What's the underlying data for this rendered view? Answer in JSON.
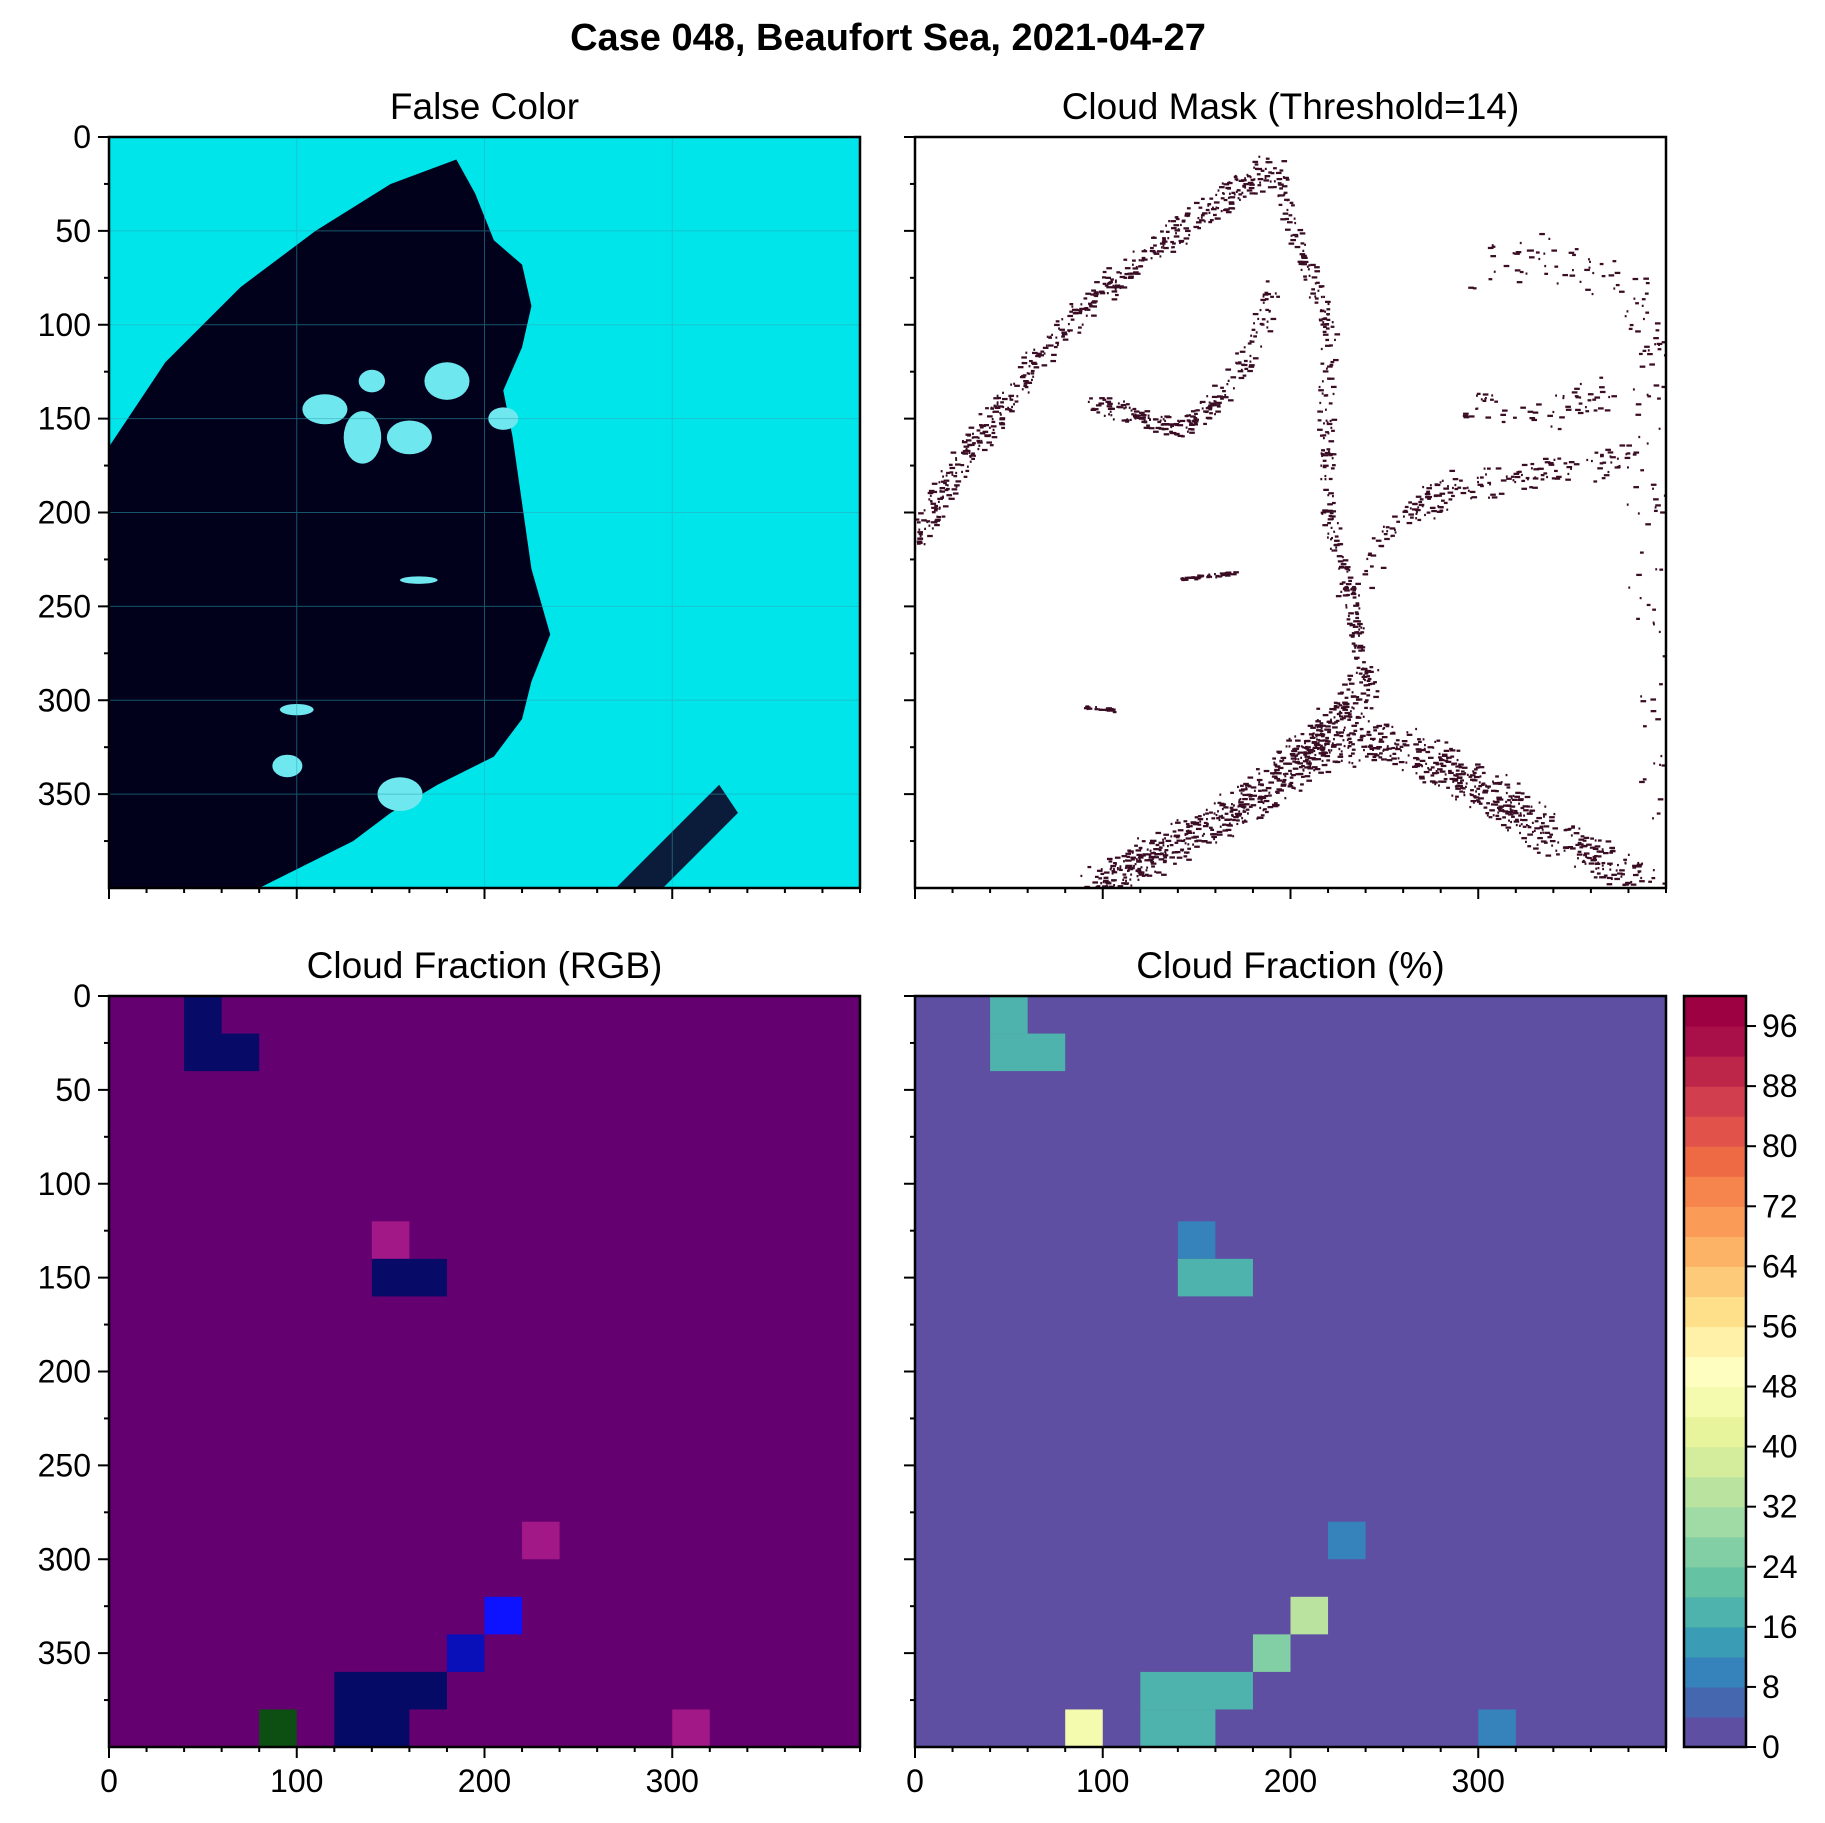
{
  "title": "Case 048, Beaufort Sea, 2021-04-27",
  "chart_data": [
    {
      "panel": "false-color",
      "type": "heatmap",
      "title": "False Color",
      "description_colors": {
        "ice": "#00e5ea",
        "water": "#02011c"
      },
      "xlim": [
        0,
        400
      ],
      "ylim": [
        400,
        0
      ],
      "xticks": [
        0,
        100,
        200,
        300
      ],
      "yticks": [
        0,
        50,
        100,
        150,
        200,
        250,
        300,
        350
      ],
      "grid": true
    },
    {
      "panel": "cloud-mask",
      "type": "heatmap",
      "title": "Cloud Mask (Threshold=14)",
      "colors": {
        "masked": "#3a0d24",
        "clear": "#ffffff"
      },
      "xlim": [
        0,
        400
      ],
      "ylim": [
        400,
        0
      ],
      "xticks": [
        0,
        100,
        200,
        300
      ],
      "yticks": [
        0,
        50,
        100,
        150,
        200,
        250,
        300,
        350
      ]
    },
    {
      "panel": "cloud-fraction-rgb",
      "type": "heatmap",
      "title": "Cloud Fraction (RGB)",
      "block_size": 20,
      "background": "#650070",
      "cells": [
        {
          "x": 40,
          "y": 0,
          "w": 20,
          "h": 20,
          "color": "#070a66"
        },
        {
          "x": 40,
          "y": 20,
          "w": 40,
          "h": 20,
          "color": "#070a66"
        },
        {
          "x": 140,
          "y": 120,
          "w": 20,
          "h": 20,
          "color": "#a31887"
        },
        {
          "x": 140,
          "y": 140,
          "w": 40,
          "h": 20,
          "color": "#070a66"
        },
        {
          "x": 220,
          "y": 280,
          "w": 20,
          "h": 20,
          "color": "#a31887"
        },
        {
          "x": 200,
          "y": 320,
          "w": 20,
          "h": 20,
          "color": "#0d12ff"
        },
        {
          "x": 180,
          "y": 340,
          "w": 20,
          "h": 20,
          "color": "#0a10b9"
        },
        {
          "x": 120,
          "y": 360,
          "w": 60,
          "h": 20,
          "color": "#050a66"
        },
        {
          "x": 120,
          "y": 380,
          "w": 40,
          "h": 20,
          "color": "#050a66"
        },
        {
          "x": 80,
          "y": 380,
          "w": 20,
          "h": 20,
          "color": "#0d4f12"
        },
        {
          "x": 300,
          "y": 380,
          "w": 20,
          "h": 20,
          "color": "#a31887"
        }
      ],
      "xlim": [
        0,
        400
      ],
      "ylim": [
        400,
        0
      ],
      "xticks": [
        0,
        100,
        200,
        300
      ],
      "yticks": [
        0,
        50,
        100,
        150,
        200,
        250,
        300,
        350
      ]
    },
    {
      "panel": "cloud-fraction-pct",
      "type": "heatmap",
      "title": "Cloud Fraction (%)",
      "block_size": 20,
      "background_value": 0,
      "cells": [
        {
          "x": 40,
          "y": 0,
          "w": 20,
          "h": 20,
          "value": 16
        },
        {
          "x": 40,
          "y": 20,
          "w": 40,
          "h": 20,
          "value": 16
        },
        {
          "x": 140,
          "y": 120,
          "w": 20,
          "h": 20,
          "value": 10
        },
        {
          "x": 140,
          "y": 140,
          "w": 40,
          "h": 20,
          "value": 16
        },
        {
          "x": 220,
          "y": 280,
          "w": 20,
          "h": 20,
          "value": 10
        },
        {
          "x": 200,
          "y": 320,
          "w": 20,
          "h": 20,
          "value": 32
        },
        {
          "x": 180,
          "y": 340,
          "w": 20,
          "h": 20,
          "value": 24
        },
        {
          "x": 120,
          "y": 360,
          "w": 60,
          "h": 20,
          "value": 16
        },
        {
          "x": 120,
          "y": 380,
          "w": 40,
          "h": 20,
          "value": 16
        },
        {
          "x": 80,
          "y": 380,
          "w": 20,
          "h": 20,
          "value": 46
        },
        {
          "x": 300,
          "y": 380,
          "w": 20,
          "h": 20,
          "value": 10
        }
      ],
      "colorbar": {
        "min": 0,
        "max": 100,
        "levels": 25,
        "ticks": [
          0,
          8,
          16,
          24,
          32,
          40,
          48,
          56,
          64,
          72,
          80,
          88,
          96
        ],
        "colors": [
          "#5e4fa2",
          "#4467af",
          "#3682ba",
          "#3b9cb5",
          "#4db3ac",
          "#65c3a4",
          "#83cfa5",
          "#a0daa4",
          "#bae3a0",
          "#d3ed9c",
          "#e7f49c",
          "#f4faae",
          "#fefec0",
          "#fff1a8",
          "#fee08b",
          "#fdca79",
          "#fdb365",
          "#fa9b58",
          "#f6844d",
          "#ee6a44",
          "#e1534a",
          "#d13f4e",
          "#bd2549",
          "#a9104a",
          "#9e0142"
        ]
      },
      "xlim": [
        0,
        400
      ],
      "ylim": [
        400,
        0
      ],
      "xticks": [
        0,
        100,
        200,
        300
      ]
    }
  ]
}
